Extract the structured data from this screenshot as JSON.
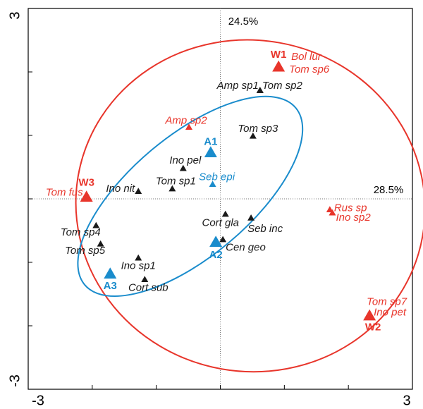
{
  "chart_data": {
    "type": "scatter",
    "xlim": [
      -3,
      3
    ],
    "ylim": [
      -3,
      3
    ],
    "xticks": [
      -3,
      3
    ],
    "yticks": [
      -3,
      3
    ],
    "xminor_ticks": [
      -2,
      -1,
      0,
      1,
      2
    ],
    "yminor_ticks": [
      -2,
      -1,
      0,
      1,
      2
    ],
    "axis_labels": [
      "24.5%",
      "28.5%"
    ],
    "series": [
      {
        "color": "#1a1a1a",
        "marker_size": "small",
        "labels": [
          "Amp sp1",
          "Tom sp2",
          "Tom sp3",
          "Ino pel",
          "Tom sp1",
          "Ino nit",
          "Tom sp4",
          "Tom sp5",
          "Ino sp1",
          "Cort sub",
          "Cort gla",
          "Seb inc",
          "Cen geo"
        ],
        "x": [
          0.62,
          0.62,
          0.51,
          -0.58,
          -0.75,
          -1.28,
          -1.94,
          -1.87,
          -1.28,
          -1.18,
          0.08,
          0.48,
          0.04
        ],
        "y": [
          1.71,
          1.71,
          0.99,
          0.48,
          0.16,
          0.12,
          -0.42,
          -0.71,
          -0.93,
          -1.27,
          -0.24,
          -0.3,
          -0.64
        ]
      },
      {
        "color": "#e8352b",
        "marker_size": "small",
        "labels": [
          "Amp sp2",
          "Rus sp",
          "Ino sp2",
          "Tom fus",
          "Bol lur",
          "Tom sp6",
          "Tom sp7",
          "Ino pet"
        ],
        "x": [
          -0.49,
          1.71,
          1.75,
          -2.09,
          0.91,
          0.91,
          2.33,
          2.33
        ],
        "y": [
          1.13,
          -0.17,
          -0.22,
          0.03,
          2.08,
          2.08,
          -1.84,
          -1.84
        ]
      },
      {
        "color": "#1a8ccc",
        "marker_size": "small",
        "labels": [
          "Seb epi"
        ],
        "x": [
          -0.12
        ],
        "y": [
          0.23
        ]
      },
      {
        "color": "#e8352b",
        "marker_size": "large",
        "labels": [
          "W1",
          "W2",
          "W3"
        ],
        "x": [
          0.91,
          2.33,
          -2.09
        ],
        "y": [
          2.08,
          -1.84,
          0.03
        ]
      },
      {
        "color": "#1a8ccc",
        "marker_size": "large",
        "labels": [
          "A1",
          "A2",
          "A3"
        ],
        "x": [
          -0.15,
          -0.07,
          -1.72
        ],
        "y": [
          0.73,
          -0.68,
          -1.18
        ]
      }
    ],
    "ellipses": [
      {
        "color": "#e8352b",
        "cx": 0.47,
        "cy": -0.11,
        "rx": 2.73,
        "ry": 2.61,
        "angle": -10
      },
      {
        "color": "#1a8ccc",
        "cx": -0.47,
        "cy": 0.04,
        "rx": 2.15,
        "ry": 0.95,
        "angle": 40
      }
    ]
  }
}
